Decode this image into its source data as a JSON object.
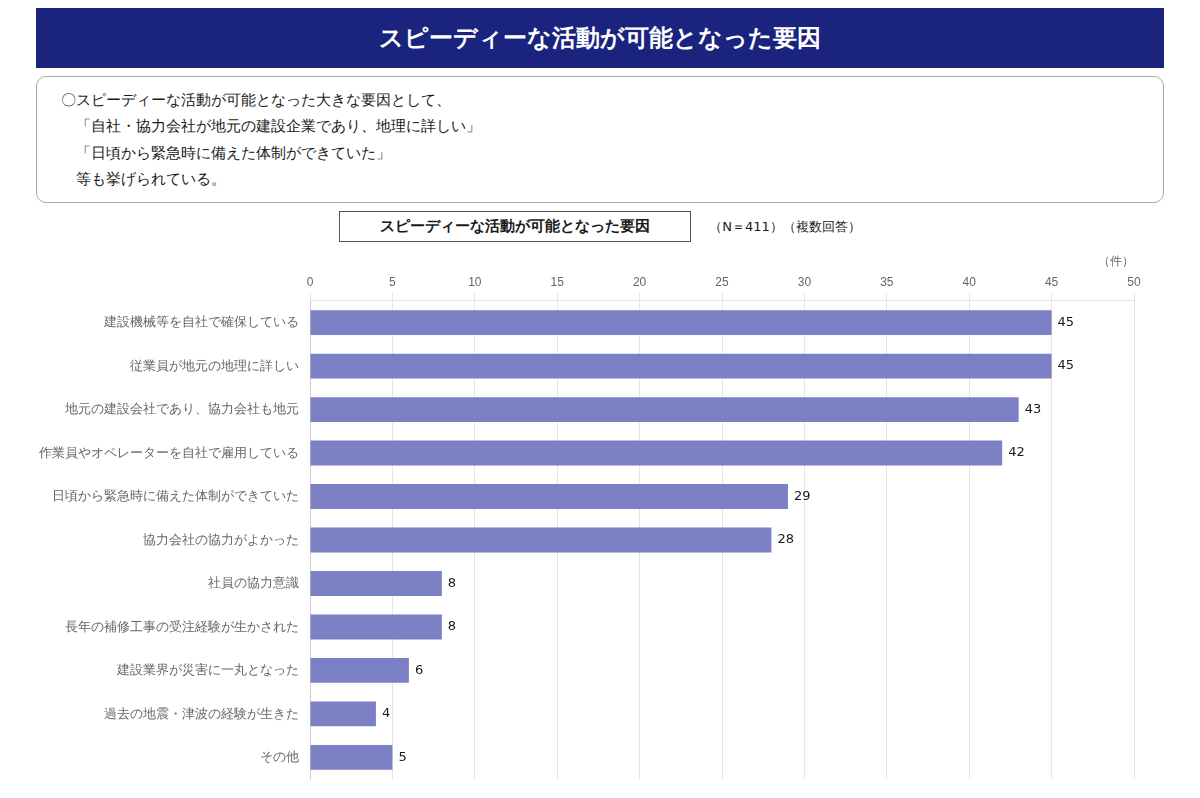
{
  "chart_data": {
    "type": "bar",
    "orientation": "horizontal",
    "title": "スピーディーな活動が可能となった要因",
    "subtitle": [
      "〇スピーディーな活動が可能となった大きな要因として、",
      "　「自社・協力会社が地元の建設企業であり、地理に詳しい」",
      "　「日頃から緊急時に備えた体制ができていた」",
      "　等も挙げられている。"
    ],
    "annotations": [
      "スピーディーな活動が可能となった要因",
      "（N＝411）（複数回答）"
    ],
    "xlabel": "（件）",
    "categories": [
      "建設機械等を自社で確保している",
      "従業員が地元の地理に詳しい",
      "地元の建設会社であり、協力会社も地元",
      "作業員やオペレーターを自社で雇用している",
      "日頃から緊急時に備えた体制ができていた",
      "協力会社の協力がよかった",
      "社員の協力意識",
      "長年の補修工事の受注経験が生かされた",
      "建設業界が災害に一丸となった",
      "過去の地震・津波の経験が生きた",
      "その他"
    ],
    "values": [
      45,
      45,
      43,
      42,
      29,
      28,
      8,
      8,
      6,
      4,
      5
    ],
    "color": "#7b7fc4",
    "xlim": [
      0,
      50
    ],
    "xticks": [
      0,
      5,
      10,
      15,
      20,
      25,
      30,
      35,
      40,
      45,
      50
    ],
    "grid": true,
    "data_labels": true
  }
}
